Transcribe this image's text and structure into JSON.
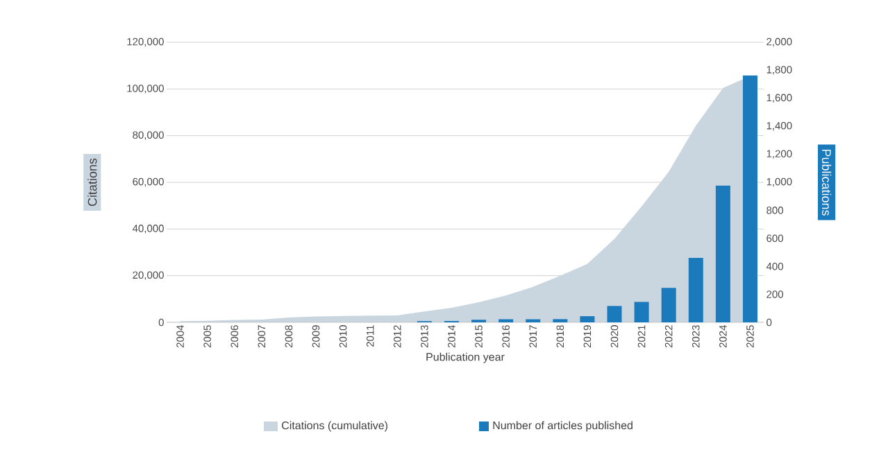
{
  "chart_data": {
    "type": "bar",
    "xlabel": "Publication year",
    "ylabel": "Citations",
    "y2label": "Publications",
    "categories": [
      "2004",
      "2005",
      "2006",
      "2007",
      "2008",
      "2009",
      "2010",
      "2011",
      "2012",
      "2013",
      "2014",
      "2015",
      "2016",
      "2017",
      "2018",
      "2019",
      "2020",
      "2021",
      "2022",
      "2023",
      "2024",
      "2025"
    ],
    "series": [
      {
        "name": "Citations (cumulative)",
        "type": "area",
        "color": "#c9d6e0",
        "values": [
          500,
          700,
          1000,
          1200,
          2100,
          2500,
          2700,
          2900,
          3000,
          4700,
          6200,
          8600,
          11500,
          15200,
          20000,
          25000,
          35800,
          49700,
          64500,
          84300,
          100400,
          105600
        ]
      },
      {
        "name": "Number of articles published",
        "axis": "y2",
        "color": "#1a7abb",
        "values": [
          null,
          null,
          null,
          null,
          null,
          null,
          null,
          null,
          null,
          8,
          10,
          18,
          22,
          22,
          23,
          44,
          117,
          146,
          246,
          460,
          976,
          1764
        ]
      }
    ],
    "ylim": [
      0,
      120000
    ],
    "yticks": [
      {
        "value": 0,
        "label": "0"
      },
      {
        "value": 20000,
        "label": "20,000"
      },
      {
        "value": 40000,
        "label": "40,000"
      },
      {
        "value": 60000,
        "label": "60,000"
      },
      {
        "value": 80000,
        "label": "80,000"
      },
      {
        "value": 100000,
        "label": "100,000"
      },
      {
        "value": 120000,
        "label": "120,000"
      }
    ],
    "y2lim": [
      0,
      2000
    ],
    "y2ticks": [
      {
        "value": 0,
        "label": "0"
      },
      {
        "value": 200,
        "label": "200"
      },
      {
        "value": 400,
        "label": "400"
      },
      {
        "value": 600,
        "label": "600"
      },
      {
        "value": 800,
        "label": "800"
      },
      {
        "value": 1000,
        "label": "1,000"
      },
      {
        "value": 1200,
        "label": "1,200"
      },
      {
        "value": 1400,
        "label": "1,400"
      },
      {
        "value": 1600,
        "label": "1,600"
      },
      {
        "value": 1800,
        "label": "1,800"
      },
      {
        "value": 2000,
        "label": "2,000"
      }
    ],
    "grid": "y",
    "legend": "bottom"
  }
}
